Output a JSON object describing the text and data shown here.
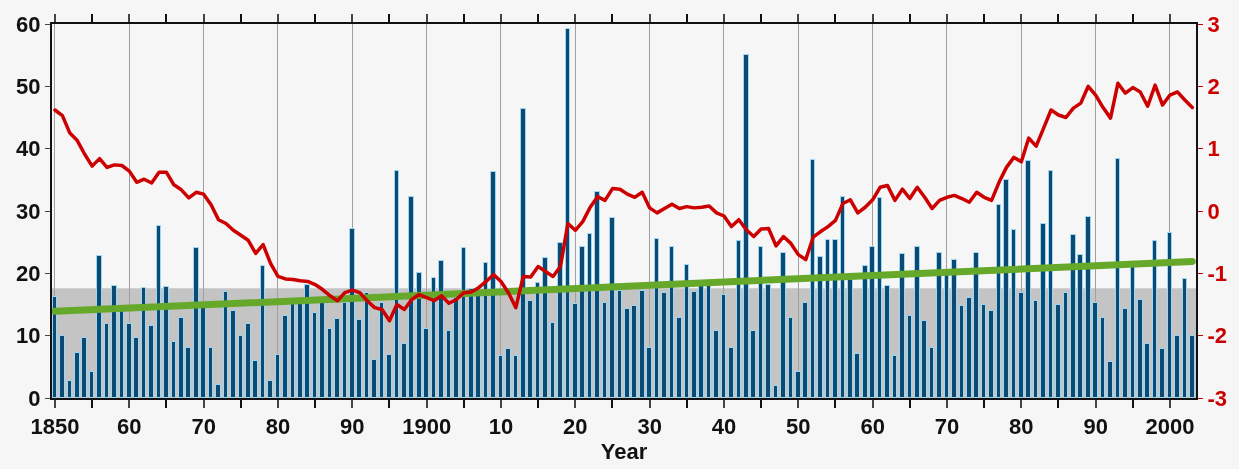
{
  "chart_data": {
    "type": "bar",
    "xlabel": "Year",
    "x": [
      1850,
      1851,
      1852,
      1853,
      1854,
      1855,
      1856,
      1857,
      1858,
      1859,
      1860,
      1861,
      1862,
      1863,
      1864,
      1865,
      1866,
      1867,
      1868,
      1869,
      1870,
      1871,
      1872,
      1873,
      1874,
      1875,
      1876,
      1877,
      1878,
      1879,
      1880,
      1881,
      1882,
      1883,
      1884,
      1885,
      1886,
      1887,
      1888,
      1889,
      1890,
      1891,
      1892,
      1893,
      1894,
      1895,
      1896,
      1897,
      1898,
      1899,
      1900,
      1901,
      1902,
      1903,
      1904,
      1905,
      1906,
      1907,
      1908,
      1909,
      1910,
      1911,
      1912,
      1913,
      1914,
      1915,
      1916,
      1917,
      1918,
      1919,
      1920,
      1921,
      1922,
      1923,
      1924,
      1925,
      1926,
      1927,
      1928,
      1929,
      1930,
      1931,
      1932,
      1933,
      1934,
      1935,
      1936,
      1937,
      1938,
      1939,
      1940,
      1941,
      1942,
      1943,
      1944,
      1945,
      1946,
      1947,
      1948,
      1949,
      1950,
      1951,
      1952,
      1953,
      1954,
      1955,
      1956,
      1957,
      1958,
      1959,
      1960,
      1961,
      1962,
      1963,
      1964,
      1965,
      1966,
      1967,
      1968,
      1969,
      1970,
      1971,
      1972,
      1973,
      1974,
      1975,
      1976,
      1977,
      1978,
      1979,
      1980,
      1981,
      1982,
      1983,
      1984,
      1985,
      1986,
      1987,
      1988,
      1989,
      1990,
      1991,
      1992,
      1993,
      1994,
      1995,
      1996,
      1997,
      1998,
      1999,
      2000,
      2001,
      2002,
      2003
    ],
    "series": [
      {
        "color": "#0b4a72",
        "values": [
          16.2,
          10,
          2.8,
          7.2,
          9.7,
          4.1,
          22.8,
          11.9,
          17.9,
          14,
          11.8,
          9.7,
          17.7,
          11.5,
          27.6,
          17.8,
          9,
          12.8,
          8,
          24.1,
          15,
          8,
          2.1,
          17,
          13.9,
          9.9,
          11.9,
          6,
          21.1,
          2.8,
          6.9,
          13.1,
          15.1,
          15.1,
          18.2,
          13.7,
          15.3,
          11.1,
          12.7,
          15.3,
          27.1,
          12.5,
          16.9,
          6.1,
          15.3,
          6.9,
          36.4,
          8.7,
          32.2,
          20,
          11.1,
          19.2,
          22,
          10.8,
          16,
          24,
          17.5,
          17.4,
          21.7,
          36.2,
          6.8,
          7.8,
          6.8,
          46.4,
          15.6,
          18.5,
          22.5,
          12,
          24.8,
          59.2,
          15.1,
          24.2,
          26.3,
          33,
          15.2,
          28.9,
          17.2,
          14.3,
          14.8,
          17.2,
          8,
          25.5,
          16.8,
          24.2,
          12.9,
          21.4,
          17,
          18,
          18,
          10.7,
          16.5,
          8,
          25.2,
          55,
          10.8,
          24.2,
          18.2,
          2,
          23.2,
          12.8,
          4.1,
          15.2,
          38.2,
          22.7,
          25.3,
          25.3,
          32.3,
          19,
          7,
          21.1,
          24.2,
          32.1,
          18,
          6.7,
          23.1,
          13.1,
          24.2,
          12.4,
          8,
          23.2,
          19.8,
          22.1,
          14.7,
          16,
          23.2,
          15,
          14,
          30.9,
          35,
          27,
          16.8,
          38.1,
          15.5,
          27.9,
          36.4,
          14.9,
          16.9,
          26.2,
          23,
          29.1,
          15.2,
          12.9,
          5.7,
          38.3,
          14.3,
          21.1,
          15.8,
          8.7,
          25.2,
          7.9,
          26.4,
          9.9,
          19.1,
          9.9
        ]
      },
      {
        "type": "line",
        "axis": "y2",
        "color": "#cc0000",
        "values": [
          1.62,
          1.53,
          1.25,
          1.13,
          0.91,
          0.72,
          0.84,
          0.7,
          0.74,
          0.73,
          0.64,
          0.46,
          0.51,
          0.45,
          0.62,
          0.62,
          0.42,
          0.34,
          0.21,
          0.3,
          0.27,
          0.1,
          -0.14,
          -0.2,
          -0.31,
          -0.39,
          -0.47,
          -0.68,
          -0.54,
          -0.84,
          -1.05,
          -1.09,
          -1.1,
          -1.12,
          -1.13,
          -1.18,
          -1.26,
          -1.36,
          -1.44,
          -1.31,
          -1.27,
          -1.31,
          -1.44,
          -1.55,
          -1.58,
          -1.76,
          -1.5,
          -1.58,
          -1.42,
          -1.34,
          -1.39,
          -1.44,
          -1.36,
          -1.48,
          -1.42,
          -1.31,
          -1.3,
          -1.23,
          -1.13,
          -1.02,
          -1.13,
          -1.31,
          -1.55,
          -1.05,
          -1.06,
          -0.89,
          -0.97,
          -1.05,
          -0.89,
          -0.2,
          -0.31,
          -0.17,
          0.06,
          0.23,
          0.17,
          0.36,
          0.35,
          0.27,
          0.22,
          0.3,
          0.05,
          -0.03,
          0.04,
          0.11,
          0.04,
          0.07,
          0.05,
          0.06,
          0.08,
          -0.03,
          -0.08,
          -0.25,
          -0.14,
          -0.3,
          -0.41,
          -0.29,
          -0.28,
          -0.56,
          -0.41,
          -0.52,
          -0.7,
          -0.78,
          -0.42,
          -0.33,
          -0.25,
          -0.15,
          0.12,
          0.18,
          -0.03,
          0.06,
          0.18,
          0.38,
          0.41,
          0.17,
          0.35,
          0.2,
          0.38,
          0.22,
          0.04,
          0.17,
          0.22,
          0.25,
          0.2,
          0.14,
          0.3,
          0.22,
          0.17,
          0.46,
          0.7,
          0.86,
          0.79,
          1.17,
          1.04,
          1.33,
          1.62,
          1.54,
          1.5,
          1.65,
          1.73,
          2.0,
          1.86,
          1.66,
          1.49,
          2.05,
          1.89,
          1.98,
          1.91,
          1.68,
          2.02,
          1.7,
          1.86,
          1.91,
          1.78,
          1.66
        ]
      },
      {
        "type": "line",
        "color": "#66a82a",
        "x": [
          1850,
          2003
        ],
        "values": [
          13.9,
          21.9
        ]
      }
    ],
    "bands": [
      {
        "axis": "y",
        "from": 0,
        "to": 17.6,
        "color": "#c4c4c4"
      }
    ],
    "xlim": [
      1849.6,
      2003.5
    ],
    "xticks": [
      {
        "value": 1850,
        "label": "1850"
      },
      {
        "value": 1855,
        "label": null
      },
      {
        "value": 1860,
        "label": "60"
      },
      {
        "value": 1865,
        "label": null
      },
      {
        "value": 1870,
        "label": "70"
      },
      {
        "value": 1875,
        "label": null
      },
      {
        "value": 1880,
        "label": "80"
      },
      {
        "value": 1885,
        "label": null
      },
      {
        "value": 1890,
        "label": "90"
      },
      {
        "value": 1895,
        "label": null
      },
      {
        "value": 1900,
        "label": "1900"
      },
      {
        "value": 1905,
        "label": null
      },
      {
        "value": 1910,
        "label": "10"
      },
      {
        "value": 1915,
        "label": null
      },
      {
        "value": 1920,
        "label": "20"
      },
      {
        "value": 1925,
        "label": null
      },
      {
        "value": 1930,
        "label": "30"
      },
      {
        "value": 1935,
        "label": null
      },
      {
        "value": 1940,
        "label": "40"
      },
      {
        "value": 1945,
        "label": null
      },
      {
        "value": 1950,
        "label": "50"
      },
      {
        "value": 1955,
        "label": null
      },
      {
        "value": 1960,
        "label": "60"
      },
      {
        "value": 1965,
        "label": null
      },
      {
        "value": 1970,
        "label": "70"
      },
      {
        "value": 1975,
        "label": null
      },
      {
        "value": 1980,
        "label": "80"
      },
      {
        "value": 1985,
        "label": null
      },
      {
        "value": 1990,
        "label": "90"
      },
      {
        "value": 1995,
        "label": null
      },
      {
        "value": 2000,
        "label": "2000"
      }
    ],
    "ylim": [
      0,
      60
    ],
    "yticks": [
      0,
      10,
      20,
      30,
      40,
      50,
      60
    ],
    "y2lim": [
      -3,
      3
    ],
    "y2ticks": [
      -3,
      -2,
      -1,
      0,
      1,
      2,
      3
    ],
    "grid": "x"
  }
}
